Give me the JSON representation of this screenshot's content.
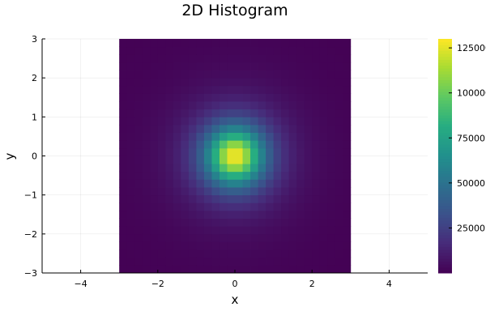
{
  "chart_data": {
    "type": "heatmap",
    "title": "2D Histogram",
    "xlabel": "x",
    "ylabel": "y",
    "xlim": [
      -5,
      5
    ],
    "ylim": [
      -3,
      3
    ],
    "x_ticks": [
      -4,
      -2,
      0,
      2,
      4
    ],
    "y_ticks": [
      -3,
      -2,
      -1,
      0,
      1,
      2,
      3
    ],
    "x_tick_labels": [
      "−4",
      "−2",
      "0",
      "2",
      "4"
    ],
    "y_tick_labels": [
      "−3",
      "−2",
      "−1",
      "0",
      "1",
      "2",
      "3"
    ],
    "bin_x_range": [
      -3,
      3
    ],
    "bin_y_range": [
      -3,
      3
    ],
    "bins_x": 30,
    "bins_y": 30,
    "peak_count": 130000,
    "peak_location": [
      0,
      0
    ],
    "distribution": "count falls off with radius r = sqrt(x^2 + y^2); approx count(r) = 130000 / (1 + r^2)^2, minimum near 0 at the corners",
    "colormap": "viridis",
    "colorbar": {
      "min": 0,
      "max": 130000,
      "ticks": [
        25000,
        50000,
        75000,
        100000,
        125000
      ],
      "tick_labels": [
        "25000",
        "50000",
        "75000",
        "100000",
        "125000"
      ]
    },
    "grid": true,
    "legend": "none"
  }
}
